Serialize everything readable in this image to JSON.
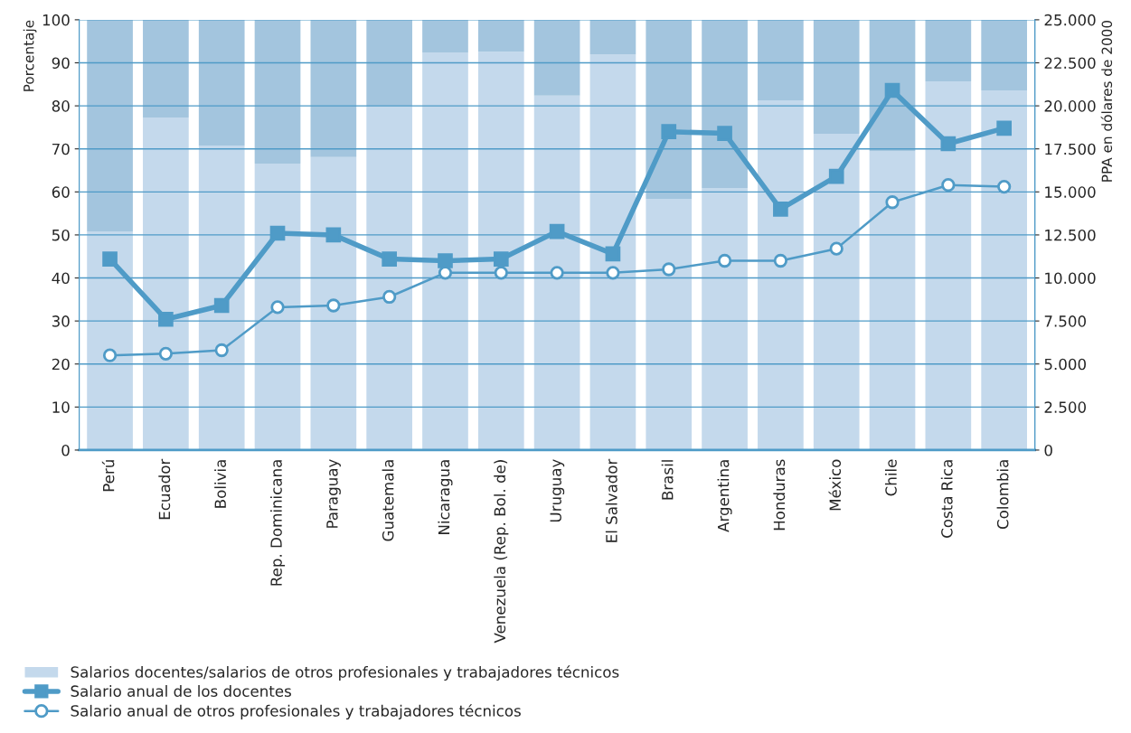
{
  "chart_data": {
    "type": "bar",
    "stacked": true,
    "categories": [
      "Perú",
      "Ecuador",
      "Bolivia",
      "Rep. Dominicana",
      "Paraguay",
      "Guatemala",
      "Nicaragua",
      "Venezuela (Rep. Bol. de)",
      "Uruguay",
      "El Salvador",
      "Brasil",
      "Argentina",
      "Honduras",
      "México",
      "Chile",
      "Costa Rica",
      "Colombia"
    ],
    "ylabel": "Porcentaje",
    "y2label": "PPA en dólares de 2000",
    "ylim": [
      0,
      100
    ],
    "yticks": [
      0,
      10,
      20,
      30,
      40,
      50,
      60,
      70,
      80,
      90,
      100
    ],
    "y2lim": [
      0,
      25000
    ],
    "y2ticks": [
      {
        "value": 0,
        "label": "0"
      },
      {
        "value": 2500,
        "label": "2.500"
      },
      {
        "value": 5000,
        "label": "5.000"
      },
      {
        "value": 7500,
        "label": "7.500"
      },
      {
        "value": 10000,
        "label": "10.000"
      },
      {
        "value": 12500,
        "label": "12.500"
      },
      {
        "value": 15000,
        "label": "15.000"
      },
      {
        "value": 17500,
        "label": "17.500"
      },
      {
        "value": 20000,
        "label": "20.000"
      },
      {
        "value": 22500,
        "label": "22.500"
      },
      {
        "value": 25000,
        "label": "25.000"
      }
    ],
    "grid": "y",
    "legend": "bottom left",
    "series": [
      {
        "name": "Salarios docentes/salarios de otros profesionales y trabajadores técnicos",
        "color": "#c4d9ec",
        "values": [
          50.8,
          77.3,
          70.8,
          66.6,
          68.1,
          80.0,
          92.4,
          92.6,
          82.4,
          92.0,
          58.4,
          60.9,
          81.3,
          73.5,
          69.5,
          85.7,
          83.6
        ]
      },
      {
        "color": "#a3c5de",
        "values": [
          49.2,
          22.7,
          29.2,
          33.4,
          31.9,
          20.0,
          7.6,
          7.4,
          17.6,
          8.0,
          41.6,
          39.1,
          18.7,
          26.5,
          30.5,
          14.3,
          16.4
        ]
      },
      {
        "name": "Salario anual de los docentes",
        "type": "line",
        "axis": "y2",
        "marker": "square",
        "color": "#4f9bc7",
        "values": [
          11100,
          7600,
          8400,
          12600,
          12500,
          11100,
          11000,
          11100,
          12700,
          11400,
          18500,
          18400,
          14000,
          15900,
          20900,
          17800,
          18700
        ]
      },
      {
        "name": "Salario anual de otros profesionales y trabajadores técnicos",
        "type": "line",
        "axis": "y2",
        "marker": "circle",
        "color": "#4f9bc7",
        "values": [
          5500,
          5600,
          5800,
          8300,
          8400,
          8900,
          10300,
          10300,
          10300,
          10300,
          10500,
          11000,
          11000,
          11700,
          14400,
          15400,
          15300
        ]
      }
    ]
  }
}
